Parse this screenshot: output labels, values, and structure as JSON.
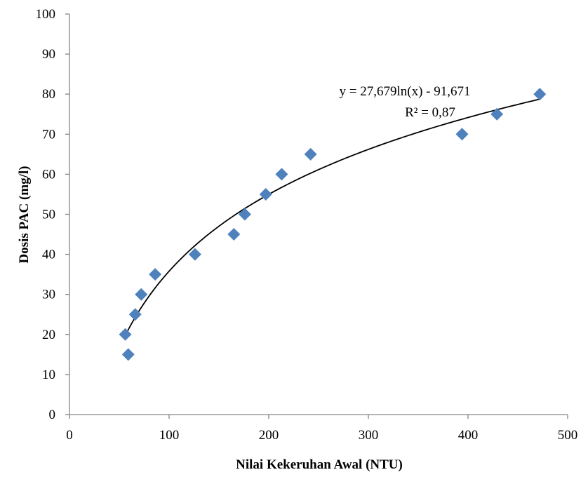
{
  "chart_data": {
    "type": "scatter",
    "title": "",
    "xlabel": "Nilai Kekeruhan Awal (NTU)",
    "ylabel": "Dosis PAC (mg/l)",
    "xlim": [
      0,
      500
    ],
    "ylim": [
      0,
      100
    ],
    "xticks": [
      "0",
      "100",
      "200",
      "300",
      "400",
      "500"
    ],
    "yticks": [
      "0",
      "10",
      "20",
      "30",
      "40",
      "50",
      "60",
      "70",
      "80",
      "90",
      "100"
    ],
    "grid": false,
    "legend": "none",
    "marker": "diamond",
    "marker_color": "#4F81BD",
    "points": [
      {
        "x": 56,
        "y": 20
      },
      {
        "x": 59,
        "y": 15
      },
      {
        "x": 66,
        "y": 25
      },
      {
        "x": 72,
        "y": 30
      },
      {
        "x": 86,
        "y": 35
      },
      {
        "x": 126,
        "y": 40
      },
      {
        "x": 165,
        "y": 45
      },
      {
        "x": 176,
        "y": 50
      },
      {
        "x": 197,
        "y": 55
      },
      {
        "x": 213,
        "y": 60
      },
      {
        "x": 242,
        "y": 65
      },
      {
        "x": 394,
        "y": 70
      },
      {
        "x": 429,
        "y": 75
      },
      {
        "x": 472,
        "y": 80
      }
    ],
    "trendline": {
      "type": "logarithmic",
      "a": 27.679,
      "b": -91.671,
      "x_range": [
        56,
        472
      ],
      "color": "#000000"
    },
    "annotations": {
      "equation": "y = 27,679ln(x) - 91,671",
      "r_squared": "R² = 0,87"
    }
  }
}
